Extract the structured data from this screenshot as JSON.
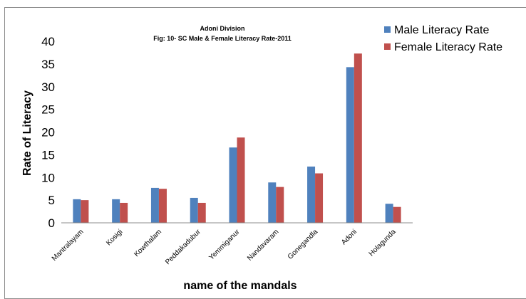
{
  "chart_data": {
    "type": "bar",
    "title": "Adoni  Division",
    "subtitle": "Fig: 10-  SC Male & Female Literacy Rate-2011",
    "xlabel": "name of the mandals",
    "ylabel": "Rate of Literacy",
    "ylim": [
      0,
      40
    ],
    "yticks": [
      "0",
      "5",
      "10",
      "15",
      "20",
      "25",
      "30",
      "35",
      "40"
    ],
    "grid": false,
    "legend_position": "top-right",
    "categories": [
      "Mantralayam",
      "Kosigi",
      "Kowthalam",
      "Peddakadubur",
      "Yemmiganur",
      "Nandavaram",
      "Gonegandla",
      "Adoni",
      "Holagunda"
    ],
    "series": [
      {
        "name": "Male Literacy Rate",
        "color": "#4f81bd",
        "values": [
          5.2,
          5.2,
          7.7,
          5.5,
          16.6,
          8.9,
          12.4,
          34.3,
          4.2
        ]
      },
      {
        "name": "Female Literacy Rate",
        "color": "#c0504d",
        "values": [
          5.0,
          4.4,
          7.5,
          4.4,
          18.8,
          7.9,
          10.9,
          37.3,
          3.5
        ]
      }
    ]
  }
}
